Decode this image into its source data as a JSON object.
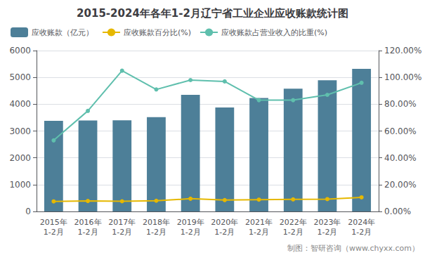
{
  "chart_data": {
    "type": "bar",
    "title": "2015-2024年各年1-2月辽宁省工业企业应收账款统计图",
    "categories": [
      "2015年\n1-2月",
      "2016年\n1-2月",
      "2017年\n1-2月",
      "2018年\n1-2月",
      "2019年\n1-2月",
      "2020年\n1-2月",
      "2021年\n1-2月",
      "2022年\n1-2月",
      "2023年\n1-2月",
      "2024年\n1-2月"
    ],
    "series": [
      {
        "name": "应收账款（亿元）",
        "type": "bar",
        "color": "#4d7f98",
        "values": [
          3380,
          3390,
          3400,
          3520,
          4350,
          3880,
          4230,
          4580,
          4890,
          5320
        ]
      },
      {
        "name": "应收账款百分比(%)",
        "type": "line",
        "color": "#e6b800",
        "marker": "circle",
        "axis": "y2",
        "values": [
          7.5,
          7.8,
          7.6,
          8.0,
          9.5,
          8.5,
          8.8,
          9.0,
          9.2,
          10.5
        ]
      },
      {
        "name": "应收账款占营业收入的比重(%)",
        "type": "line",
        "color": "#5fbfad",
        "marker": "circle",
        "axis": "y2",
        "values": [
          53,
          75,
          105,
          91,
          98,
          97,
          83,
          83,
          87,
          96
        ]
      }
    ],
    "ylim": [
      0,
      6000
    ],
    "yticks": [
      0,
      1000,
      2000,
      3000,
      4000,
      5000,
      6000
    ],
    "y2lim": [
      0,
      120
    ],
    "y2ticks": [
      {
        "value": 0,
        "label": "0.00%"
      },
      {
        "value": 20,
        "label": "20.00%"
      },
      {
        "value": 40,
        "label": "40.00%"
      },
      {
        "value": 60,
        "label": "60.00%"
      },
      {
        "value": 80,
        "label": "80.00%"
      },
      {
        "value": 100,
        "label": "100.00%"
      },
      {
        "value": 120,
        "label": "120.00%"
      }
    ],
    "grid": true,
    "legend": "upper left",
    "annotations": [
      "制图：智研咨询（www.chyxx.com）"
    ]
  }
}
